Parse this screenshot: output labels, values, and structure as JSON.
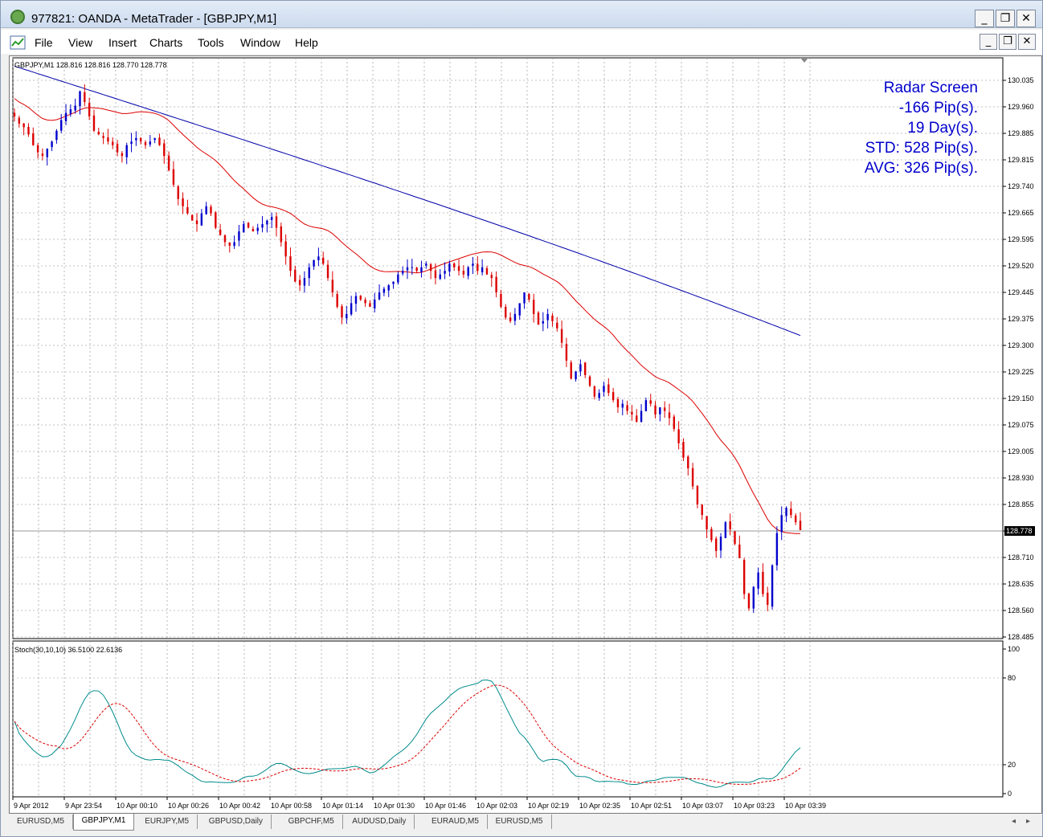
{
  "window": {
    "title": "977821: OANDA - MetaTrader - [GBPJPY,M1]",
    "minimize": "_",
    "restore": "❐",
    "close": "✕"
  },
  "menu": [
    "File",
    "View",
    "Insert",
    "Charts",
    "Tools",
    "Window",
    "Help"
  ],
  "chart_header": "GBPJPY,M1  128.816 128.816 128.770 128.778",
  "current_price": "128.778",
  "radar": {
    "line1": "Radar Screen",
    "line2": "-166 Pip(s).",
    "line3": "19 Day(s).",
    "line4": "STD: 528 Pip(s).",
    "line5": "AVG: 326 Pip(s)."
  },
  "indicator_header": "Stoch(30,10,10) 36.5100 22.6136",
  "price_ticks": [
    "130.035",
    "129.960",
    "129.885",
    "129.815",
    "129.740",
    "129.665",
    "129.595",
    "129.520",
    "129.445",
    "129.375",
    "129.300",
    "129.225",
    "129.150",
    "129.075",
    "129.005",
    "128.930",
    "128.855",
    "128.778",
    "128.710",
    "128.635",
    "128.560",
    "128.485"
  ],
  "stoch_ticks": [
    "100",
    "80",
    "20",
    "0"
  ],
  "time_ticks": [
    "9 Apr 2012",
    "9 Apr 23:54",
    "10 Apr 00:10",
    "10 Apr 00:26",
    "10 Apr 00:42",
    "10 Apr 00:58",
    "10 Apr 01:14",
    "10 Apr 01:30",
    "10 Apr 01:46",
    "10 Apr 02:03",
    "10 Apr 02:19",
    "10 Apr 02:35",
    "10 Apr 02:51",
    "10 Apr 03:07",
    "10 Apr 03:23",
    "10 Apr 03:39"
  ],
  "tabs": [
    "EURUSD,M5",
    "GBPJPY,M1",
    "EURJPY,M5",
    "GBPUSD,Daily",
    "GBPCHF,M5",
    "AUDUSD,Daily",
    "EURAUD,M5",
    "EURUSD,M5"
  ],
  "active_tab": 1,
  "colors": {
    "bull": "#0000cc",
    "bear": "#dd0000",
    "ma_fast": "#dd0000",
    "ma_slow": "#0000aa",
    "stoch_main": "#008b8b",
    "stoch_signal": "#dd0000"
  },
  "chart_data": {
    "type": "candlestick",
    "symbol": "GBPJPY",
    "timeframe": "M1",
    "ylim": [
      128.485,
      130.035
    ],
    "close_series": [
      129.93,
      129.91,
      129.9,
      129.88,
      129.85,
      129.83,
      129.82,
      129.84,
      129.86,
      129.89,
      129.92,
      129.94,
      129.95,
      129.96,
      130.0,
      129.97,
      129.93,
      129.89,
      129.88,
      129.87,
      129.86,
      129.85,
      129.83,
      129.82,
      129.85,
      129.86,
      129.87,
      129.86,
      129.85,
      129.86,
      129.87,
      129.85,
      129.82,
      129.78,
      129.74,
      129.7,
      129.68,
      129.66,
      129.64,
      129.63,
      129.66,
      129.68,
      129.66,
      129.62,
      129.6,
      129.58,
      129.57,
      129.58,
      129.61,
      129.63,
      129.62,
      129.61,
      129.62,
      129.63,
      129.64,
      129.65,
      129.62,
      129.58,
      129.54,
      129.5,
      129.47,
      129.46,
      129.48,
      129.51,
      129.53,
      129.54,
      129.52,
      129.48,
      129.44,
      129.4,
      129.37,
      129.38,
      129.41,
      129.43,
      129.42,
      129.41,
      129.4,
      129.42,
      129.44,
      129.45,
      129.46,
      129.47,
      129.49,
      129.5,
      129.51,
      129.51,
      129.5,
      129.51,
      129.52,
      129.5,
      129.48,
      129.49,
      129.5,
      129.52,
      129.51,
      129.5,
      129.49,
      129.51,
      129.52,
      129.5,
      129.51,
      129.49,
      129.48,
      129.44,
      129.4,
      129.37,
      129.36,
      129.38,
      129.41,
      129.44,
      129.42,
      129.38,
      129.35,
      129.36,
      129.38,
      129.36,
      129.34,
      129.3,
      129.25,
      129.2,
      129.22,
      129.24,
      129.21,
      129.18,
      129.15,
      129.16,
      129.18,
      129.16,
      129.14,
      129.12,
      129.13,
      129.11,
      129.1,
      129.08,
      129.11,
      129.14,
      129.13,
      129.1,
      129.12,
      129.11,
      129.09,
      129.06,
      129.02,
      128.98,
      128.95,
      128.9,
      128.85,
      128.82,
      128.78,
      128.75,
      128.72,
      128.76,
      128.8,
      128.78,
      128.74,
      128.7,
      128.6,
      128.56,
      128.62,
      128.66,
      128.6,
      128.57,
      128.68,
      128.77,
      128.82,
      128.84,
      128.82,
      128.8,
      128.778
    ]
  }
}
